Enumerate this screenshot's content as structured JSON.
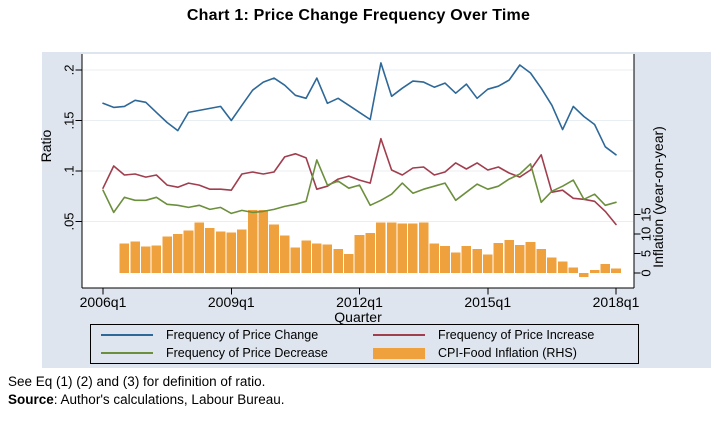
{
  "footer": {
    "note": "See Eq (1) (2) and (3) for definition of ratio.",
    "source_label": "Source",
    "source_rest": ": Author's calculations, Labour Bureau."
  },
  "colors": {
    "background": "#dee5ee",
    "plot_background": "#ffffff",
    "gridline": "#e9eef2",
    "axis": "#000000",
    "text": "#000000"
  },
  "chart_data": {
    "type": "line+bar",
    "title": "Chart 1: Price Change Frequency Over Time",
    "x_label": "Quarter",
    "y_left_label": "Ratio",
    "y_right_label": "Inflation (year-on-year)",
    "legend_position": "bottom",
    "grid": "horizontal",
    "y_left_lim": [
      -0.019,
      0.216
    ],
    "y_right_lim": [
      -3.8,
      56
    ],
    "x": [
      "2006q1",
      "2006q2",
      "2006q3",
      "2006q4",
      "2007q1",
      "2007q2",
      "2007q3",
      "2007q4",
      "2008q1",
      "2008q2",
      "2008q3",
      "2008q4",
      "2009q1",
      "2009q2",
      "2009q3",
      "2009q4",
      "2010q1",
      "2010q2",
      "2010q3",
      "2010q4",
      "2011q1",
      "2011q2",
      "2011q3",
      "2011q4",
      "2012q1",
      "2012q2",
      "2012q3",
      "2012q4",
      "2013q1",
      "2013q2",
      "2013q3",
      "2013q4",
      "2014q1",
      "2014q2",
      "2014q3",
      "2014q4",
      "2015q1",
      "2015q2",
      "2015q3",
      "2015q4",
      "2016q1",
      "2016q2",
      "2016q3",
      "2016q4",
      "2017q1",
      "2017q2",
      "2017q3",
      "2017q4",
      "2018q1"
    ],
    "x_ticks": [
      0,
      12,
      24,
      36,
      48
    ],
    "y_left_ticks": [
      {
        "value": 0.05,
        "label": ".05"
      },
      {
        "value": 0.1,
        "label": ".1"
      },
      {
        "value": 0.15,
        "label": ".15"
      },
      {
        "value": 0.2,
        "label": ".2"
      }
    ],
    "y_right_ticks": [
      {
        "value": 0,
        "label": "0"
      },
      {
        "value": 5,
        "label": "5"
      },
      {
        "value": 10,
        "label": "10"
      },
      {
        "value": 15,
        "label": "15"
      }
    ],
    "series": [
      {
        "id": "price-change",
        "name": "Frequency of Price Change",
        "type": "line",
        "axis": "left",
        "color": "#2e6898",
        "values": [
          0.167,
          0.163,
          0.164,
          0.17,
          0.168,
          0.158,
          0.148,
          0.14,
          0.158,
          0.16,
          0.162,
          0.164,
          0.15,
          0.165,
          0.18,
          0.188,
          0.192,
          0.185,
          0.175,
          0.172,
          0.192,
          0.167,
          0.172,
          0.165,
          0.158,
          0.151,
          0.207,
          0.174,
          0.182,
          0.189,
          0.188,
          0.183,
          0.187,
          0.177,
          0.186,
          0.172,
          0.181,
          0.184,
          0.19,
          0.205,
          0.197,
          0.182,
          0.165,
          0.141,
          0.164,
          0.154,
          0.146,
          0.124,
          0.116
        ]
      },
      {
        "id": "price-increase",
        "name": "Frequency of Price Increase",
        "type": "line",
        "axis": "left",
        "color": "#a03e4e",
        "values": [
          0.083,
          0.105,
          0.096,
          0.097,
          0.094,
          0.096,
          0.086,
          0.084,
          0.088,
          0.086,
          0.082,
          0.082,
          0.081,
          0.097,
          0.099,
          0.097,
          0.099,
          0.114,
          0.117,
          0.113,
          0.082,
          0.085,
          0.092,
          0.095,
          0.091,
          0.088,
          0.132,
          0.101,
          0.096,
          0.103,
          0.104,
          0.096,
          0.099,
          0.108,
          0.102,
          0.108,
          0.101,
          0.104,
          0.098,
          0.094,
          0.101,
          0.116,
          0.079,
          0.081,
          0.073,
          0.072,
          0.07,
          0.06,
          0.047
        ]
      },
      {
        "id": "price-decrease",
        "name": "Frequency of Price Decrease",
        "type": "line",
        "axis": "left",
        "color": "#6c8f3e",
        "values": [
          0.081,
          0.059,
          0.074,
          0.071,
          0.071,
          0.074,
          0.067,
          0.066,
          0.064,
          0.066,
          0.062,
          0.064,
          0.058,
          0.061,
          0.059,
          0.06,
          0.062,
          0.065,
          0.067,
          0.07,
          0.111,
          0.086,
          0.09,
          0.083,
          0.086,
          0.066,
          0.071,
          0.077,
          0.088,
          0.078,
          0.082,
          0.085,
          0.088,
          0.071,
          0.079,
          0.087,
          0.082,
          0.085,
          0.092,
          0.097,
          0.107,
          0.069,
          0.08,
          0.085,
          0.091,
          0.072,
          0.077,
          0.066,
          0.069
        ]
      },
      {
        "id": "cpi-food",
        "name": "CPI-Food Inflation (RHS)",
        "type": "bar",
        "axis": "right",
        "color": "#efa13d",
        "values": [
          null,
          null,
          7.6,
          8.1,
          6.8,
          7.0,
          9.3,
          10.0,
          10.9,
          13.0,
          11.5,
          10.6,
          10.4,
          11.2,
          16.1,
          16.1,
          12.4,
          9.6,
          6.6,
          8.3,
          7.6,
          7.3,
          6.2,
          4.9,
          9.8,
          10.2,
          12.9,
          13.0,
          12.7,
          12.7,
          13.0,
          7.6,
          6.9,
          5.3,
          6.9,
          6.1,
          4.8,
          7.7,
          8.5,
          7.2,
          8.0,
          6.1,
          4.0,
          3.0,
          1.4,
          -1.0,
          0.8,
          2.3,
          1.2
        ]
      }
    ]
  }
}
